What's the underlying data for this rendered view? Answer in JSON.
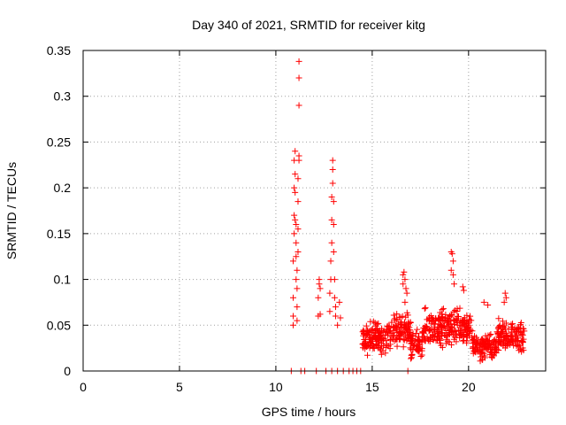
{
  "chart_data": {
    "type": "scatter",
    "title": "Day 340 of 2021, SRMTID for receiver kitg",
    "xlabel": "GPS time / hours",
    "ylabel": "SRMTID / TECUs",
    "xlim": [
      0,
      24
    ],
    "ylim": [
      0,
      0.35
    ],
    "xticks": [
      0,
      5,
      10,
      15,
      20
    ],
    "xtick_labels": [
      "0",
      "5",
      "10",
      "15",
      "20"
    ],
    "yticks": [
      0,
      0.05,
      0.1,
      0.15,
      0.2,
      0.25,
      0.3,
      0.35
    ],
    "ytick_labels": [
      "0",
      "0.05",
      "0.1",
      "0.15",
      "0.2",
      "0.25",
      "0.3",
      "0.35"
    ],
    "grid": true,
    "marker": "+",
    "series": [
      {
        "name": "SRMTID",
        "color": "#ff0000",
        "points": [
          [
            10.9,
            0.05
          ],
          [
            10.9,
            0.06
          ],
          [
            10.9,
            0.08
          ],
          [
            10.9,
            0.12
          ],
          [
            10.95,
            0.15
          ],
          [
            10.95,
            0.17
          ],
          [
            10.95,
            0.2
          ],
          [
            10.95,
            0.23
          ],
          [
            11.0,
            0.24
          ],
          [
            11.0,
            0.215
          ],
          [
            11.0,
            0.195
          ],
          [
            11.0,
            0.165
          ],
          [
            11.05,
            0.16
          ],
          [
            11.05,
            0.14
          ],
          [
            11.05,
            0.125
          ],
          [
            11.05,
            0.1
          ],
          [
            11.1,
            0.07
          ],
          [
            11.1,
            0.055
          ],
          [
            11.1,
            0.09
          ],
          [
            11.1,
            0.11
          ],
          [
            11.15,
            0.13
          ],
          [
            11.15,
            0.155
          ],
          [
            11.15,
            0.185
          ],
          [
            11.15,
            0.21
          ],
          [
            11.2,
            0.23
          ],
          [
            11.2,
            0.235
          ],
          [
            11.2,
            0.29
          ],
          [
            11.2,
            0.32
          ],
          [
            11.2,
            0.338
          ],
          [
            12.2,
            0.06
          ],
          [
            12.2,
            0.08
          ],
          [
            12.25,
            0.095
          ],
          [
            12.25,
            0.1
          ],
          [
            12.3,
            0.09
          ],
          [
            12.3,
            0.062
          ],
          [
            12.8,
            0.065
          ],
          [
            12.8,
            0.085
          ],
          [
            12.85,
            0.1
          ],
          [
            12.85,
            0.12
          ],
          [
            12.9,
            0.14
          ],
          [
            12.9,
            0.165
          ],
          [
            12.9,
            0.19
          ],
          [
            12.95,
            0.205
          ],
          [
            12.95,
            0.22
          ],
          [
            12.95,
            0.23
          ],
          [
            13.0,
            0.185
          ],
          [
            13.0,
            0.16
          ],
          [
            13.0,
            0.13
          ],
          [
            13.05,
            0.1
          ],
          [
            13.05,
            0.08
          ],
          [
            13.1,
            0.07
          ],
          [
            13.1,
            0.06
          ],
          [
            13.2,
            0.05
          ],
          [
            13.3,
            0.075
          ],
          [
            13.35,
            0.058
          ],
          [
            10.8,
            0.0
          ],
          [
            11.3,
            0.0
          ],
          [
            11.5,
            0.0
          ],
          [
            12.1,
            0.0
          ],
          [
            12.6,
            0.0
          ],
          [
            12.9,
            0.0
          ],
          [
            13.2,
            0.0
          ],
          [
            13.5,
            0.0
          ],
          [
            13.8,
            0.0
          ],
          [
            14.0,
            0.0
          ],
          [
            14.2,
            0.0
          ],
          [
            14.4,
            0.0
          ],
          [
            16.85,
            0.0
          ],
          [
            16.6,
            0.105
          ],
          [
            16.65,
            0.108
          ],
          [
            16.7,
            0.1
          ],
          [
            16.75,
            0.09
          ],
          [
            16.8,
            0.085
          ],
          [
            16.6,
            0.095
          ],
          [
            16.7,
            0.075
          ],
          [
            19.1,
            0.13
          ],
          [
            19.15,
            0.128
          ],
          [
            19.2,
            0.12
          ],
          [
            19.2,
            0.105
          ],
          [
            19.1,
            0.11
          ],
          [
            19.25,
            0.095
          ],
          [
            19.7,
            0.092
          ],
          [
            19.75,
            0.088
          ],
          [
            20.8,
            0.075
          ],
          [
            21.0,
            0.072
          ],
          [
            21.9,
            0.085
          ],
          [
            21.95,
            0.08
          ],
          [
            21.85,
            0.075
          ]
        ],
        "bands": [
          {
            "x": [
              14.5,
              16.0
            ],
            "ymin": 0.015,
            "ymax": 0.06,
            "center": 0.04
          },
          {
            "x": [
              16.0,
              17.0
            ],
            "ymin": 0.02,
            "ymax": 0.07,
            "center": 0.045
          },
          {
            "x": [
              17.0,
              17.6
            ],
            "ymin": 0.01,
            "ymax": 0.05,
            "center": 0.03
          },
          {
            "x": [
              17.6,
              18.6
            ],
            "ymin": 0.02,
            "ymax": 0.075,
            "center": 0.05
          },
          {
            "x": [
              18.6,
              19.6
            ],
            "ymin": 0.02,
            "ymax": 0.08,
            "center": 0.05
          },
          {
            "x": [
              19.6,
              20.2
            ],
            "ymin": 0.02,
            "ymax": 0.07,
            "center": 0.045
          },
          {
            "x": [
              20.2,
              21.5
            ],
            "ymin": 0.008,
            "ymax": 0.045,
            "center": 0.025
          },
          {
            "x": [
              21.5,
              22.9
            ],
            "ymin": 0.015,
            "ymax": 0.06,
            "center": 0.035
          }
        ]
      }
    ]
  }
}
